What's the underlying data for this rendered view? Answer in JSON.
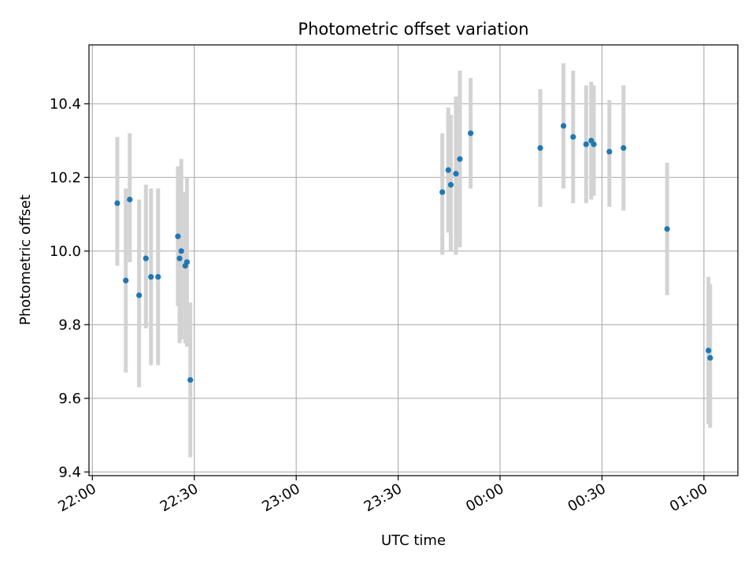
{
  "chart_data": {
    "type": "scatter",
    "title": "Photometric offset variation",
    "xlabel": "UTC time",
    "ylabel": "Photometric offset",
    "xlim": [
      "21:59",
      "01:10"
    ],
    "ylim": [
      9.39,
      10.56
    ],
    "grid": true,
    "x_ticks": [
      {
        "value": "22:00",
        "label": "22:00"
      },
      {
        "value": "22:30",
        "label": "22:30"
      },
      {
        "value": "23:00",
        "label": "23:00"
      },
      {
        "value": "23:30",
        "label": "23:30"
      },
      {
        "value": "00:00",
        "label": "00:00"
      },
      {
        "value": "00:30",
        "label": "00:30"
      },
      {
        "value": "01:00",
        "label": "01:00"
      }
    ],
    "y_ticks": [
      {
        "value": 9.4,
        "label": "9.4"
      },
      {
        "value": 9.6,
        "label": "9.6"
      },
      {
        "value": 9.8,
        "label": "9.8"
      },
      {
        "value": 10.0,
        "label": "10.0"
      },
      {
        "value": 10.2,
        "label": "10.2"
      },
      {
        "value": 10.4,
        "label": "10.4"
      }
    ],
    "colors": {
      "point": "#1f77b4",
      "errorbar": "#d3d3d3",
      "grid": "#b0b0b0",
      "axis": "#000000"
    },
    "points": [
      {
        "x": "22:07:20",
        "y": 10.13,
        "yerr_low": 9.96,
        "yerr_high": 10.31
      },
      {
        "x": "22:09:50",
        "y": 9.92,
        "yerr_low": 9.67,
        "yerr_high": 10.17
      },
      {
        "x": "22:11:00",
        "y": 10.14,
        "yerr_low": 9.97,
        "yerr_high": 10.32
      },
      {
        "x": "22:13:45",
        "y": 9.88,
        "yerr_low": 9.63,
        "yerr_high": 10.14
      },
      {
        "x": "22:15:45",
        "y": 9.98,
        "yerr_low": 9.79,
        "yerr_high": 10.18
      },
      {
        "x": "22:17:15",
        "y": 9.93,
        "yerr_low": 9.69,
        "yerr_high": 10.17
      },
      {
        "x": "22:19:20",
        "y": 9.93,
        "yerr_low": 9.69,
        "yerr_high": 10.17
      },
      {
        "x": "22:25:10",
        "y": 10.04,
        "yerr_low": 9.85,
        "yerr_high": 10.23
      },
      {
        "x": "22:25:40",
        "y": 9.98,
        "yerr_low": 9.75,
        "yerr_high": 10.21
      },
      {
        "x": "22:26:10",
        "y": 10.0,
        "yerr_low": 9.76,
        "yerr_high": 10.25
      },
      {
        "x": "22:27:20",
        "y": 9.96,
        "yerr_low": 9.75,
        "yerr_high": 10.16
      },
      {
        "x": "22:27:50",
        "y": 9.97,
        "yerr_low": 9.74,
        "yerr_high": 10.2
      },
      {
        "x": "22:28:50",
        "y": 9.65,
        "yerr_low": 9.44,
        "yerr_high": 9.86
      },
      {
        "x": "23:43:00",
        "y": 10.16,
        "yerr_low": 9.99,
        "yerr_high": 10.32
      },
      {
        "x": "23:44:45",
        "y": 10.22,
        "yerr_low": 10.05,
        "yerr_high": 10.39
      },
      {
        "x": "23:45:30",
        "y": 10.18,
        "yerr_low": 10.0,
        "yerr_high": 10.37
      },
      {
        "x": "23:47:00",
        "y": 10.21,
        "yerr_low": 9.99,
        "yerr_high": 10.42
      },
      {
        "x": "23:48:10",
        "y": 10.25,
        "yerr_low": 10.01,
        "yerr_high": 10.49
      },
      {
        "x": "23:51:20",
        "y": 10.32,
        "yerr_low": 10.17,
        "yerr_high": 10.47
      },
      {
        "x": "00:11:50",
        "y": 10.28,
        "yerr_low": 10.12,
        "yerr_high": 10.44
      },
      {
        "x": "00:18:40",
        "y": 10.34,
        "yerr_low": 10.17,
        "yerr_high": 10.51
      },
      {
        "x": "00:21:30",
        "y": 10.31,
        "yerr_low": 10.13,
        "yerr_high": 10.49
      },
      {
        "x": "00:25:20",
        "y": 10.29,
        "yerr_low": 10.13,
        "yerr_high": 10.45
      },
      {
        "x": "00:26:50",
        "y": 10.3,
        "yerr_low": 10.14,
        "yerr_high": 10.46
      },
      {
        "x": "00:27:35",
        "y": 10.29,
        "yerr_low": 10.15,
        "yerr_high": 10.45
      },
      {
        "x": "00:32:10",
        "y": 10.27,
        "yerr_low": 10.12,
        "yerr_high": 10.41
      },
      {
        "x": "00:36:20",
        "y": 10.28,
        "yerr_low": 10.11,
        "yerr_high": 10.45
      },
      {
        "x": "00:49:10",
        "y": 10.06,
        "yerr_low": 9.88,
        "yerr_high": 10.24
      },
      {
        "x": "01:01:20",
        "y": 9.73,
        "yerr_low": 9.53,
        "yerr_high": 9.93
      },
      {
        "x": "01:01:50",
        "y": 9.71,
        "yerr_low": 9.52,
        "yerr_high": 9.91
      }
    ]
  }
}
